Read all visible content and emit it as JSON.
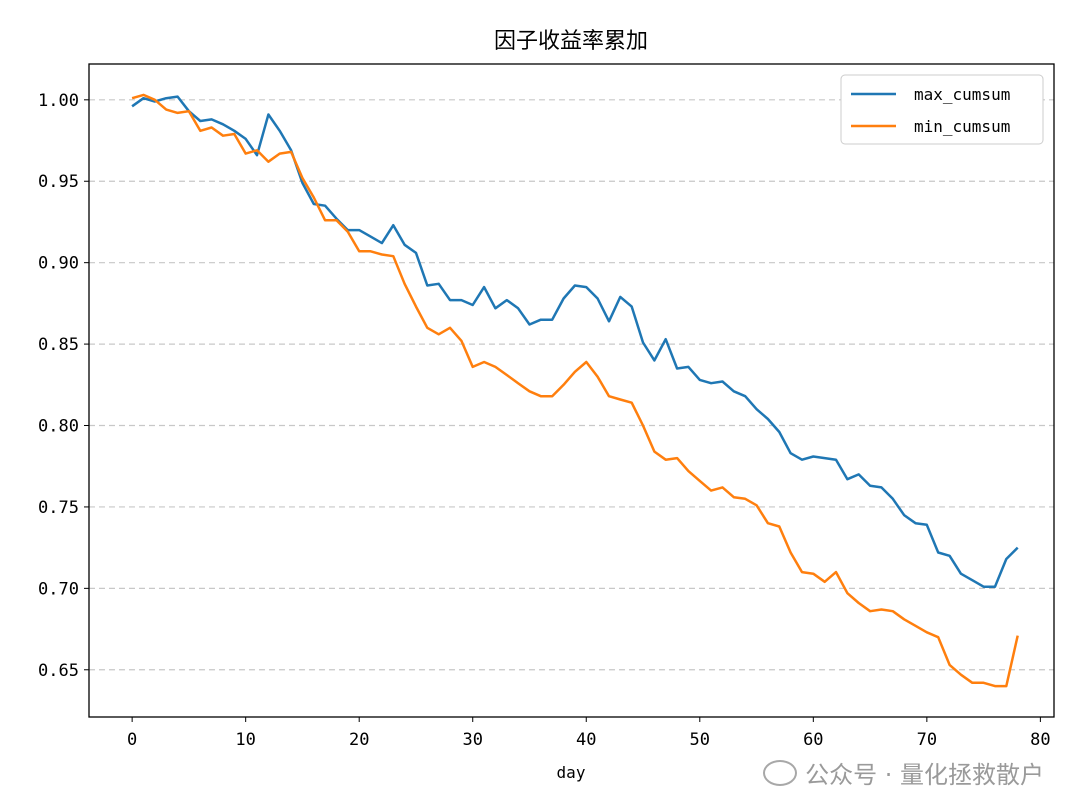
{
  "chart_data": {
    "type": "line",
    "title": "因子收益率累加",
    "xlabel": "day",
    "ylabel": "",
    "xlim": [
      -3.8,
      81.2
    ],
    "ylim": [
      0.621,
      1.022
    ],
    "xticks": [
      0,
      10,
      20,
      30,
      40,
      50,
      60,
      70,
      80
    ],
    "yticks": [
      0.65,
      0.7,
      0.75,
      0.8,
      0.85,
      0.9,
      0.95,
      1.0
    ],
    "ytick_labels": [
      "0.65",
      "0.70",
      "0.75",
      "0.80",
      "0.85",
      "0.90",
      "0.95",
      "1.00"
    ],
    "grid": "y-dashed",
    "legend_position": "top-right",
    "series": [
      {
        "name": "max_cumsum",
        "color": "#1f77b4",
        "values": [
          0.996,
          1.001,
          0.999,
          1.001,
          1.002,
          0.993,
          0.987,
          0.988,
          0.985,
          0.981,
          0.976,
          0.966,
          0.991,
          0.981,
          0.969,
          0.949,
          0.936,
          0.935,
          0.927,
          0.92,
          0.92,
          0.916,
          0.912,
          0.923,
          0.911,
          0.906,
          0.886,
          0.887,
          0.877,
          0.877,
          0.874,
          0.885,
          0.872,
          0.877,
          0.872,
          0.862,
          0.865,
          0.865,
          0.878,
          0.886,
          0.885,
          0.878,
          0.864,
          0.879,
          0.873,
          0.851,
          0.84,
          0.853,
          0.835,
          0.836,
          0.828,
          0.826,
          0.827,
          0.821,
          0.818,
          0.81,
          0.804,
          0.796,
          0.783,
          0.779,
          0.781,
          0.78,
          0.779,
          0.767,
          0.77,
          0.763,
          0.762,
          0.755,
          0.745,
          0.74,
          0.739,
          0.722,
          0.72,
          0.709,
          0.705,
          0.701,
          0.701,
          0.718,
          0.725
        ]
      },
      {
        "name": "min_cumsum",
        "color": "#ff7f0e",
        "values": [
          1.001,
          1.003,
          1.0,
          0.994,
          0.992,
          0.993,
          0.981,
          0.983,
          0.978,
          0.979,
          0.967,
          0.969,
          0.962,
          0.967,
          0.968,
          0.952,
          0.94,
          0.926,
          0.926,
          0.919,
          0.907,
          0.907,
          0.905,
          0.904,
          0.887,
          0.873,
          0.86,
          0.856,
          0.86,
          0.852,
          0.836,
          0.839,
          0.836,
          0.831,
          0.826,
          0.821,
          0.818,
          0.818,
          0.825,
          0.833,
          0.839,
          0.83,
          0.818,
          0.816,
          0.814,
          0.8,
          0.784,
          0.779,
          0.78,
          0.772,
          0.766,
          0.76,
          0.762,
          0.756,
          0.755,
          0.751,
          0.74,
          0.738,
          0.722,
          0.71,
          0.709,
          0.704,
          0.71,
          0.697,
          0.691,
          0.686,
          0.687,
          0.686,
          0.681,
          0.677,
          0.673,
          0.67,
          0.653,
          0.647,
          0.642,
          0.642,
          0.64,
          0.64,
          0.671
        ]
      }
    ]
  },
  "watermark": {
    "text": "公众号 · 量化拯救散户",
    "icon": "wechat-icon"
  }
}
